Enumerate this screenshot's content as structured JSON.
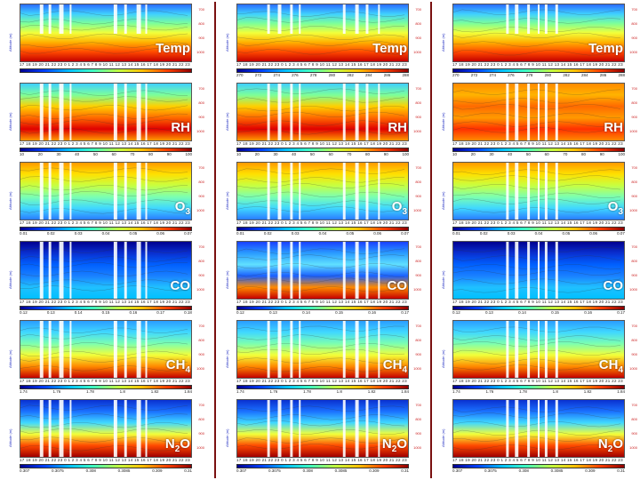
{
  "columns": [
    {
      "id": "left",
      "panels": [
        {
          "label": "Temp",
          "scale": "temp",
          "colorbar_ticks": [
            "",
            "",
            "",
            "",
            "",
            ""
          ]
        },
        {
          "label": "RH",
          "scale": "rh",
          "colorbar_ticks": [
            "10",
            "20",
            "30",
            "40",
            "50",
            "60",
            "70",
            "80",
            "90",
            "100"
          ]
        },
        {
          "label": "O",
          "sub": "3",
          "scale": "o3",
          "colorbar_ticks": [
            "0.01",
            "0.02",
            "0.03",
            "0.04",
            "0.05",
            "0.06",
            "0.07"
          ]
        },
        {
          "label": "CO",
          "scale": "co",
          "colorbar_ticks": [
            "0.12",
            "0.13",
            "0.14",
            "0.15",
            "0.16",
            "0.17",
            "0.18"
          ]
        },
        {
          "label": "CH",
          "sub": "4",
          "scale": "ch4",
          "colorbar_ticks": [
            "1.74",
            "1.76",
            "1.78",
            "1.8",
            "1.82",
            "1.84"
          ]
        },
        {
          "label": "N",
          "sub": "2",
          "suffix": "O",
          "scale": "n2o",
          "colorbar_ticks": [
            "0.307",
            "0.3075",
            "0.308",
            "0.3085",
            "0.309",
            "0.31"
          ]
        }
      ]
    },
    {
      "id": "middle",
      "panels": [
        {
          "label": "Temp",
          "scale": "temp",
          "colorbar_ticks": [
            "270",
            "272",
            "274",
            "276",
            "278",
            "280",
            "282",
            "284",
            "286",
            "288"
          ]
        },
        {
          "label": "RH",
          "scale": "rh",
          "colorbar_ticks": [
            "10",
            "20",
            "30",
            "40",
            "50",
            "60",
            "70",
            "80",
            "90",
            "100"
          ]
        },
        {
          "label": "O",
          "sub": "3",
          "scale": "o3",
          "colorbar_ticks": [
            "0.01",
            "0.02",
            "0.03",
            "0.04",
            "0.05",
            "0.06",
            "0.07"
          ]
        },
        {
          "label": "CO",
          "scale": "co",
          "colorbar_ticks": [
            "0.12",
            "0.13",
            "0.14",
            "0.15",
            "0.16",
            "0.17"
          ]
        },
        {
          "label": "CH",
          "sub": "4",
          "scale": "ch4",
          "colorbar_ticks": [
            "1.74",
            "1.76",
            "1.78",
            "1.8",
            "1.82",
            "1.84"
          ]
        },
        {
          "label": "N",
          "sub": "2",
          "suffix": "O",
          "scale": "n2o",
          "colorbar_ticks": [
            "0.307",
            "0.3075",
            "0.308",
            "0.3085",
            "0.309",
            "0.31"
          ]
        }
      ]
    },
    {
      "id": "right",
      "panels": [
        {
          "label": "Temp",
          "scale": "temp",
          "colorbar_ticks": [
            "270",
            "272",
            "274",
            "276",
            "278",
            "280",
            "282",
            "284",
            "286",
            "288"
          ]
        },
        {
          "label": "RH",
          "scale": "rh",
          "colorbar_ticks": [
            "10",
            "20",
            "30",
            "40",
            "50",
            "60",
            "70",
            "80",
            "90",
            "100"
          ]
        },
        {
          "label": "O",
          "sub": "3",
          "scale": "o3",
          "colorbar_ticks": [
            "0.01",
            "0.02",
            "0.03",
            "0.04",
            "0.05",
            "0.06",
            "0.07"
          ]
        },
        {
          "label": "CO",
          "scale": "co",
          "colorbar_ticks": [
            "0.12",
            "0.13",
            "0.14",
            "0.15",
            "0.16",
            "0.17"
          ]
        },
        {
          "label": "CH",
          "sub": "4",
          "scale": "ch4",
          "colorbar_ticks": [
            "1.74",
            "1.76",
            "1.78",
            "1.8",
            "1.82",
            "1.84"
          ]
        },
        {
          "label": "N",
          "sub": "2",
          "suffix": "O",
          "scale": "n2o",
          "colorbar_ticks": [
            "0.307",
            "0.3075",
            "0.308",
            "0.3085",
            "0.309",
            "0.31"
          ]
        }
      ]
    }
  ],
  "x_ticks": "17 18 19 20 21 22 23 0 1 2 3 4 5 6 7 8 9 10 11 12 13 14 15 16 17 18 19 20 21 22 23",
  "alt_axis": "Altitude (m)",
  "press_ticks": [
    "700",
    "800",
    "900",
    "1000"
  ],
  "colors": {
    "divider": "#7a1010",
    "jet": [
      "#00008f",
      "#0040ff",
      "#00c0ff",
      "#40ffbf",
      "#bfff40",
      "#ffc000",
      "#ff4000",
      "#8f0000"
    ]
  }
}
